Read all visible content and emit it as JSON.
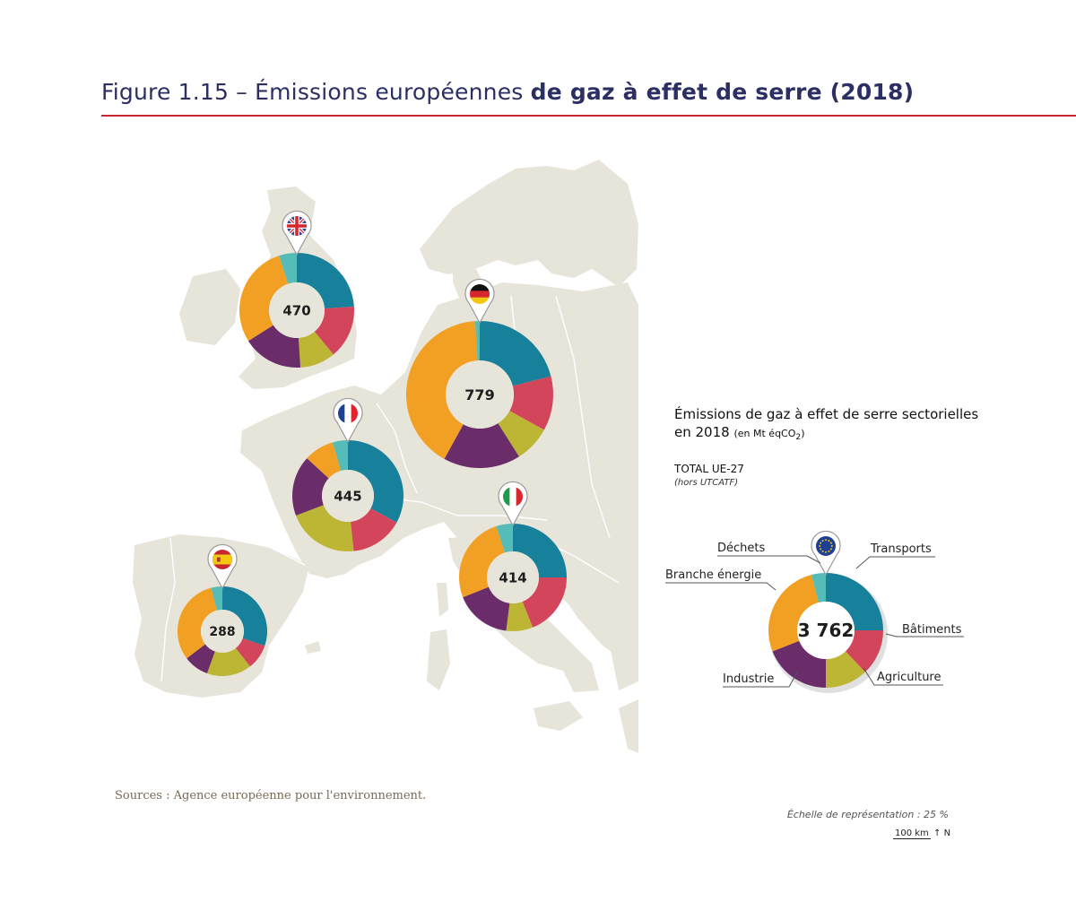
{
  "figure": {
    "title_light": "Figure 1.15 – Émissions européennes ",
    "title_bold": "de gaz à effet de serre (2018)"
  },
  "legend": {
    "heading": "Émissions de gaz à effet de serre sectorielles",
    "heading_line2": "en 2018",
    "unit_prefix": "(en Mt éqCO",
    "unit_sub": "2",
    "unit_suffix": ")",
    "total_label": "TOTAL UE-27",
    "total_sub": "(hors UTCATF)"
  },
  "footer": {
    "sources": "Sources :  Agence européenne pour l'environnement.",
    "scale_text": "Échelle de représentation : 25 %",
    "scale_km": "100 km",
    "north": "N"
  },
  "colors": {
    "Transports": "#17809a",
    "Bâtiments": "#d2455a",
    "Agriculture": "#bdb635",
    "Industrie": "#6a2d6a",
    "Branche énergie": "#f2a024",
    "Déchets": "#55bcb7",
    "land": "#e7e4da",
    "title": "#2b2f63",
    "rule": "#c8262f"
  },
  "chart_data": {
    "type": "pie",
    "title": "Émissions européennes de gaz à effet de serre (2018)",
    "unit": "Mt éqCO2",
    "sectors": [
      "Transports",
      "Bâtiments",
      "Agriculture",
      "Industrie",
      "Branche énergie",
      "Déchets"
    ],
    "series": [
      {
        "name": "Royaume-Uni",
        "flag": "uk",
        "total": 470,
        "total_label": "470",
        "shares": [
          0.24,
          0.15,
          0.1,
          0.17,
          0.29,
          0.05
        ]
      },
      {
        "name": "Allemagne",
        "flag": "de",
        "total": 779,
        "total_label": "779",
        "shares": [
          0.21,
          0.12,
          0.08,
          0.17,
          0.41,
          0.01
        ]
      },
      {
        "name": "France",
        "flag": "fr",
        "total": 445,
        "total_label": "445",
        "shares": [
          0.3,
          0.14,
          0.19,
          0.16,
          0.08,
          0.04
        ]
      },
      {
        "name": "Italie",
        "flag": "it",
        "total": 414,
        "total_label": "414",
        "shares": [
          0.25,
          0.19,
          0.08,
          0.17,
          0.26,
          0.05
        ]
      },
      {
        "name": "Espagne",
        "flag": "es",
        "total": 288,
        "total_label": "288",
        "shares": [
          0.3,
          0.09,
          0.16,
          0.09,
          0.31,
          0.04
        ]
      },
      {
        "name": "UE-27",
        "flag": "eu",
        "total": 3762,
        "total_label": "3 762",
        "shares": [
          0.25,
          0.13,
          0.12,
          0.19,
          0.27,
          0.04
        ]
      }
    ]
  }
}
